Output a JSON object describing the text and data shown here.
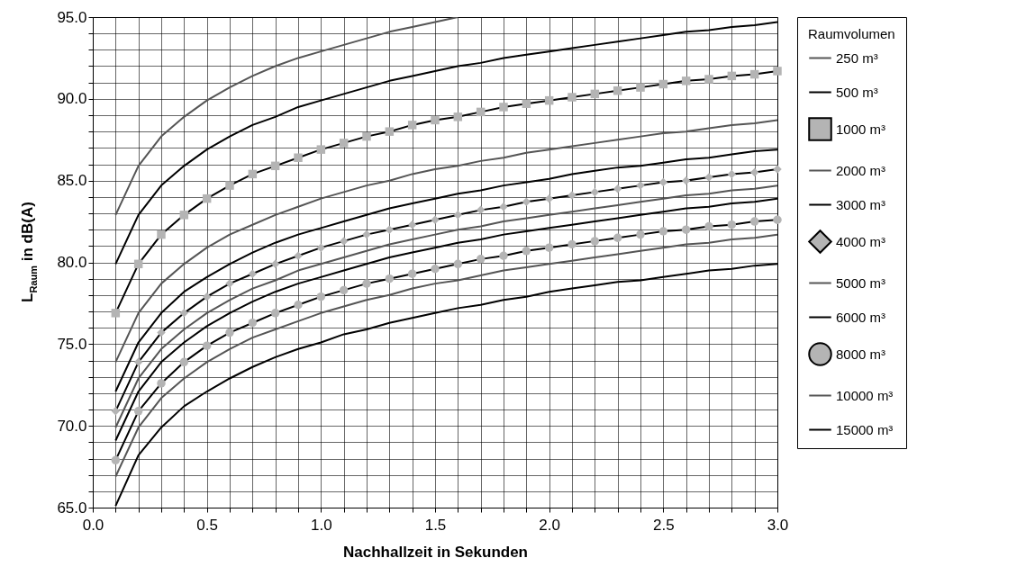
{
  "chart_data": {
    "type": "line",
    "xlabel": "Nachhallzeit in Sekunden",
    "ylabel": "L$_{Raum}$ in dB(A)",
    "legend_title": "Raumvolumen",
    "legend": "right",
    "grid": true,
    "x": [
      0.1,
      0.2,
      0.3,
      0.4,
      0.5,
      0.6,
      0.7,
      0.8,
      0.9,
      1.0,
      1.1,
      1.2,
      1.3,
      1.4,
      1.5,
      1.6,
      1.7,
      1.8,
      1.9,
      2.0,
      2.1,
      2.2,
      2.3,
      2.4,
      2.5,
      2.6,
      2.7,
      2.8,
      2.9,
      3.0
    ],
    "xlim": [
      0,
      3
    ],
    "ylim": [
      65,
      95
    ],
    "xticks": [
      {
        "value": 0,
        "label": "0.0"
      },
      {
        "value": 0.1,
        "label": null
      },
      {
        "value": 0.2,
        "label": null
      },
      {
        "value": 0.3,
        "label": null
      },
      {
        "value": 0.4,
        "label": null
      },
      {
        "value": 0.5,
        "label": "0.5"
      },
      {
        "value": 0.6,
        "label": null
      },
      {
        "value": 0.7,
        "label": null
      },
      {
        "value": 0.8,
        "label": null
      },
      {
        "value": 0.9,
        "label": null
      },
      {
        "value": 1,
        "label": "1.0"
      },
      {
        "value": 1.1,
        "label": null
      },
      {
        "value": 1.2,
        "label": null
      },
      {
        "value": 1.3,
        "label": null
      },
      {
        "value": 1.4,
        "label": null
      },
      {
        "value": 1.5,
        "label": "1.5"
      },
      {
        "value": 1.6,
        "label": null
      },
      {
        "value": 1.7,
        "label": null
      },
      {
        "value": 1.8,
        "label": null
      },
      {
        "value": 1.9,
        "label": null
      },
      {
        "value": 2,
        "label": "2.0"
      },
      {
        "value": 2.1,
        "label": null
      },
      {
        "value": 2.2,
        "label": null
      },
      {
        "value": 2.3,
        "label": null
      },
      {
        "value": 2.4,
        "label": null
      },
      {
        "value": 2.5,
        "label": "2.5"
      },
      {
        "value": 2.6,
        "label": null
      },
      {
        "value": 2.7,
        "label": null
      },
      {
        "value": 2.8,
        "label": null
      },
      {
        "value": 2.9,
        "label": null
      },
      {
        "value": 3,
        "label": "3.0"
      }
    ],
    "yticks": [
      {
        "value": 65,
        "label": "65.0"
      },
      {
        "value": 66,
        "label": null
      },
      {
        "value": 67,
        "label": null
      },
      {
        "value": 68,
        "label": null
      },
      {
        "value": 69,
        "label": null
      },
      {
        "value": 70,
        "label": "70.0"
      },
      {
        "value": 71,
        "label": null
      },
      {
        "value": 72,
        "label": null
      },
      {
        "value": 73,
        "label": null
      },
      {
        "value": 74,
        "label": null
      },
      {
        "value": 75,
        "label": "75.0"
      },
      {
        "value": 76,
        "label": null
      },
      {
        "value": 77,
        "label": null
      },
      {
        "value": 78,
        "label": null
      },
      {
        "value": 79,
        "label": null
      },
      {
        "value": 80,
        "label": "80.0"
      },
      {
        "value": 81,
        "label": null
      },
      {
        "value": 82,
        "label": null
      },
      {
        "value": 83,
        "label": null
      },
      {
        "value": 84,
        "label": null
      },
      {
        "value": 85,
        "label": "85.0"
      },
      {
        "value": 86,
        "label": null
      },
      {
        "value": 87,
        "label": null
      },
      {
        "value": 88,
        "label": null
      },
      {
        "value": 89,
        "label": null
      },
      {
        "value": 90,
        "label": "90.0"
      },
      {
        "value": 91,
        "label": null
      },
      {
        "value": 92,
        "label": null
      },
      {
        "value": 93,
        "label": null
      },
      {
        "value": 94,
        "label": null
      },
      {
        "value": 95,
        "label": "95.0"
      }
    ],
    "series": [
      {
        "name": "250 m³",
        "color": "#555555",
        "marker": "none",
        "values": [
          82.9,
          85.9,
          87.7,
          88.9,
          89.9,
          90.7,
          91.4,
          92.0,
          92.5,
          92.9,
          93.3,
          93.7,
          94.1,
          94.4,
          94.7,
          95.0,
          null,
          null,
          null,
          null,
          null,
          null,
          null,
          null,
          null,
          null,
          null,
          null,
          null,
          null
        ]
      },
      {
        "name": "500 m³",
        "color": "#000000",
        "marker": "none",
        "values": [
          79.9,
          82.9,
          84.7,
          85.9,
          86.9,
          87.7,
          88.4,
          88.9,
          89.5,
          89.9,
          90.3,
          90.7,
          91.1,
          91.4,
          91.7,
          92.0,
          92.2,
          92.5,
          92.7,
          92.9,
          93.1,
          93.3,
          93.5,
          93.7,
          93.9,
          94.1,
          94.2,
          94.4,
          94.5,
          94.7
        ]
      },
      {
        "name": "1000 m³",
        "color": "#b4b4b4",
        "marker": "square",
        "values": [
          76.9,
          79.9,
          81.7,
          82.9,
          83.9,
          84.7,
          85.4,
          85.9,
          86.4,
          86.9,
          87.3,
          87.7,
          88.0,
          88.4,
          88.7,
          88.9,
          89.2,
          89.5,
          89.7,
          89.9,
          90.1,
          90.3,
          90.5,
          90.7,
          90.9,
          91.1,
          91.2,
          91.4,
          91.5,
          91.7
        ]
      },
      {
        "name": "2000 m³",
        "color": "#555555",
        "marker": "none",
        "values": [
          73.9,
          76.9,
          78.7,
          79.9,
          80.9,
          81.7,
          82.3,
          82.9,
          83.4,
          83.9,
          84.3,
          84.7,
          85.0,
          85.4,
          85.7,
          85.9,
          86.2,
          86.4,
          86.7,
          86.9,
          87.1,
          87.3,
          87.5,
          87.7,
          87.9,
          88.0,
          88.2,
          88.4,
          88.5,
          88.7
        ]
      },
      {
        "name": "3000 m³",
        "color": "#000000",
        "marker": "none",
        "values": [
          72.1,
          75.1,
          76.9,
          78.2,
          79.1,
          79.9,
          80.6,
          81.2,
          81.7,
          82.1,
          82.5,
          82.9,
          83.3,
          83.6,
          83.9,
          84.2,
          84.4,
          84.7,
          84.9,
          85.1,
          85.4,
          85.6,
          85.8,
          85.9,
          86.1,
          86.3,
          86.4,
          86.6,
          86.8,
          86.9
        ]
      },
      {
        "name": "4000 m³",
        "color": "#b4b4b4",
        "marker": "diamond",
        "values": [
          70.9,
          73.9,
          75.7,
          76.9,
          77.9,
          78.7,
          79.3,
          79.9,
          80.4,
          80.9,
          81.3,
          81.7,
          82.0,
          82.3,
          82.6,
          82.9,
          83.2,
          83.4,
          83.7,
          83.9,
          84.1,
          84.3,
          84.5,
          84.7,
          84.9,
          85.0,
          85.2,
          85.4,
          85.5,
          85.7
        ]
      },
      {
        "name": "5000 m³",
        "color": "#555555",
        "marker": "none",
        "values": [
          69.9,
          72.9,
          74.7,
          75.9,
          76.9,
          77.7,
          78.4,
          78.9,
          79.5,
          79.9,
          80.3,
          80.7,
          81.1,
          81.4,
          81.7,
          82.0,
          82.2,
          82.5,
          82.7,
          82.9,
          83.1,
          83.3,
          83.5,
          83.7,
          83.9,
          84.1,
          84.2,
          84.4,
          84.5,
          84.7
        ]
      },
      {
        "name": "6000 m³",
        "color": "#000000",
        "marker": "none",
        "values": [
          69.1,
          72.1,
          73.9,
          75.1,
          76.1,
          76.9,
          77.6,
          78.2,
          78.7,
          79.1,
          79.5,
          79.9,
          80.3,
          80.6,
          80.9,
          81.2,
          81.4,
          81.7,
          81.9,
          82.1,
          82.3,
          82.5,
          82.7,
          82.9,
          83.1,
          83.3,
          83.4,
          83.6,
          83.7,
          83.9
        ]
      },
      {
        "name": "8000 m³",
        "color": "#b4b4b4",
        "marker": "circle",
        "values": [
          67.9,
          70.9,
          72.6,
          73.9,
          74.9,
          75.7,
          76.3,
          76.9,
          77.4,
          77.9,
          78.3,
          78.7,
          79.0,
          79.3,
          79.6,
          79.9,
          80.2,
          80.4,
          80.7,
          80.9,
          81.1,
          81.3,
          81.5,
          81.7,
          81.9,
          82.0,
          82.2,
          82.3,
          82.5,
          82.6
        ]
      },
      {
        "name": "10000 m³",
        "color": "#555555",
        "marker": "none",
        "values": [
          66.9,
          69.9,
          71.7,
          72.9,
          73.9,
          74.7,
          75.4,
          75.9,
          76.4,
          76.9,
          77.3,
          77.7,
          78.0,
          78.4,
          78.7,
          78.9,
          79.2,
          79.5,
          79.7,
          79.9,
          80.1,
          80.3,
          80.5,
          80.7,
          80.9,
          81.1,
          81.2,
          81.4,
          81.5,
          81.7
        ]
      },
      {
        "name": "15000 m³",
        "color": "#000000",
        "marker": "none",
        "values": [
          65.1,
          68.2,
          69.9,
          71.2,
          72.1,
          72.9,
          73.6,
          74.2,
          74.7,
          75.1,
          75.6,
          75.9,
          76.3,
          76.6,
          76.9,
          77.2,
          77.4,
          77.7,
          77.9,
          78.2,
          78.4,
          78.6,
          78.8,
          78.9,
          79.1,
          79.3,
          79.5,
          79.6,
          79.8,
          79.9
        ]
      }
    ]
  }
}
